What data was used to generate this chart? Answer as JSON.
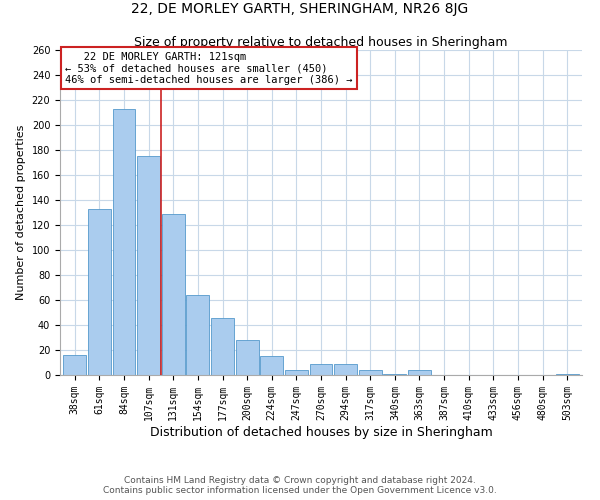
{
  "title": "22, DE MORLEY GARTH, SHERINGHAM, NR26 8JG",
  "subtitle": "Size of property relative to detached houses in Sheringham",
  "xlabel": "Distribution of detached houses by size in Sheringham",
  "ylabel": "Number of detached properties",
  "bar_labels": [
    "38sqm",
    "61sqm",
    "84sqm",
    "107sqm",
    "131sqm",
    "154sqm",
    "177sqm",
    "200sqm",
    "224sqm",
    "247sqm",
    "270sqm",
    "294sqm",
    "317sqm",
    "340sqm",
    "363sqm",
    "387sqm",
    "410sqm",
    "433sqm",
    "456sqm",
    "480sqm",
    "503sqm"
  ],
  "bar_values": [
    16,
    133,
    213,
    175,
    129,
    64,
    46,
    28,
    15,
    4,
    9,
    9,
    4,
    1,
    4,
    0,
    0,
    0,
    0,
    0,
    1
  ],
  "bar_color": "#aaccee",
  "bar_edge_color": "#5599cc",
  "ylim": [
    0,
    260
  ],
  "yticks": [
    0,
    20,
    40,
    60,
    80,
    100,
    120,
    140,
    160,
    180,
    200,
    220,
    240,
    260
  ],
  "annotation_title": "22 DE MORLEY GARTH: 121sqm",
  "annotation_line1": "← 53% of detached houses are smaller (450)",
  "annotation_line2": "46% of semi-detached houses are larger (386) →",
  "annotation_box_color": "#ffffff",
  "annotation_box_edge": "#cc2222",
  "property_line_x": 3,
  "property_line_color": "#cc2222",
  "footnote1": "Contains HM Land Registry data © Crown copyright and database right 2024.",
  "footnote2": "Contains public sector information licensed under the Open Government Licence v3.0.",
  "bg_color": "#ffffff",
  "grid_color": "#c8d8e8",
  "title_fontsize": 10,
  "subtitle_fontsize": 9,
  "xlabel_fontsize": 9,
  "ylabel_fontsize": 8,
  "tick_fontsize": 7,
  "annotation_fontsize": 7.5,
  "footnote_fontsize": 6.5
}
